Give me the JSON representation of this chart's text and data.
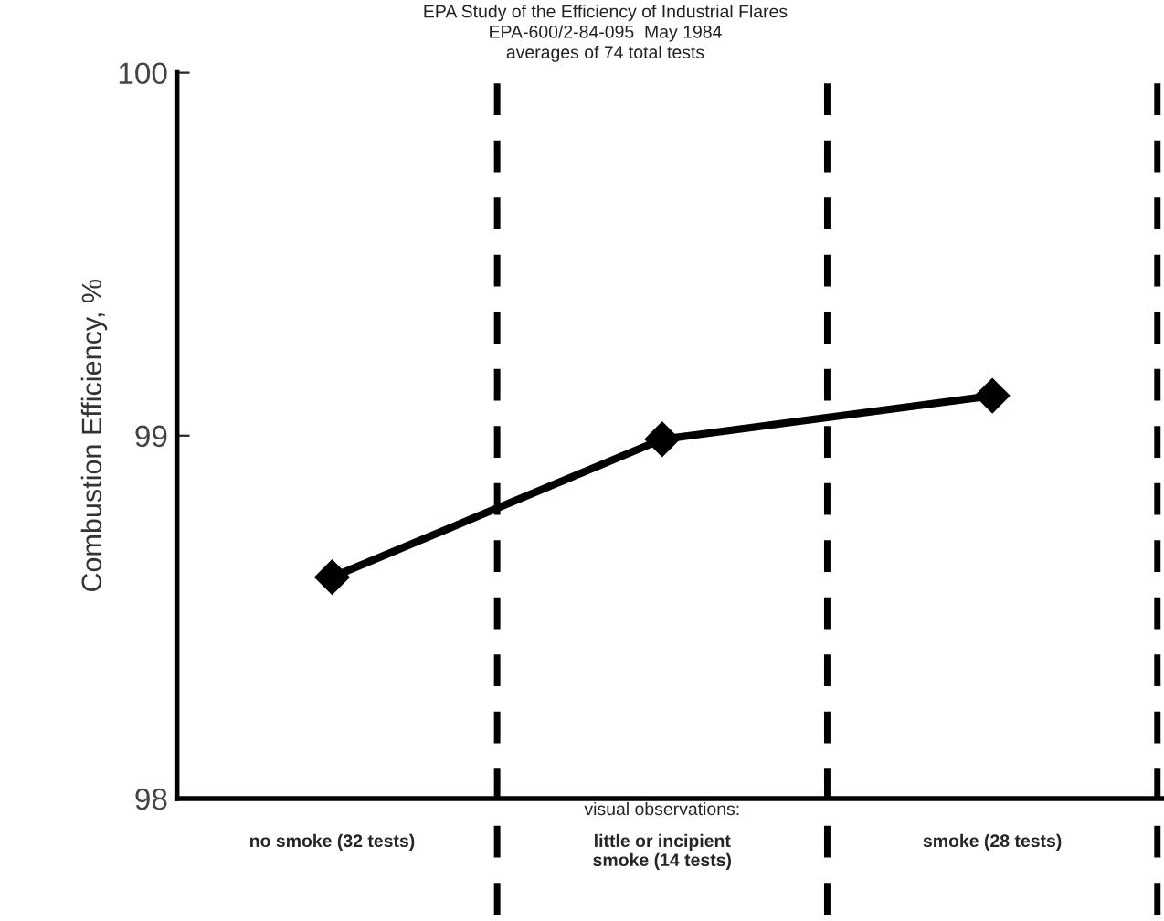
{
  "chart_data": {
    "type": "line",
    "title": "EPA Study of the Efficiency of Industrial Flares",
    "subtitle": "EPA-600/2-84-095  May 1984\naverages of 74 total tests",
    "ylabel": "Combustion Efficiency, %",
    "categories": [
      "no smoke (32 tests)",
      "little or incipient\nsmoke (14 tests)",
      "smoke (28 tests)"
    ],
    "series": [
      {
        "color": "#000000",
        "values": [
          98.61,
          98.99,
          99.11
        ]
      }
    ],
    "ylim": [
      98,
      100
    ],
    "yticks": [
      98,
      99,
      100
    ],
    "marker": "diamond",
    "line_style": "solid",
    "grid": false,
    "legend": false,
    "annotations": [
      "visual observations:"
    ]
  }
}
